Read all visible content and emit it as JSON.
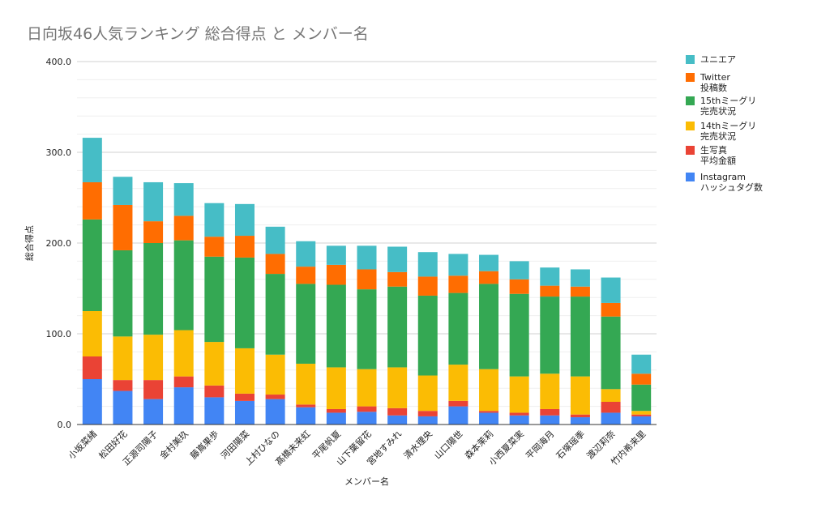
{
  "chart_data": {
    "type": "bar",
    "stacked": true,
    "title": "日向坂46人気ランキング 総合得点 と メンバー名",
    "xlabel": "メンバー名",
    "ylabel": "総合得点",
    "ylim": [
      0,
      400
    ],
    "yticks": [
      "0.0",
      "100.0",
      "200.0",
      "300.0",
      "400.0"
    ],
    "grid": true,
    "legend_position": "right",
    "categories": [
      "小坂菜緒",
      "松田好花",
      "正源司陽子",
      "金村美玖",
      "藤嶌果歩",
      "河田陽菜",
      "上村ひなの",
      "髙橋未来虹",
      "平尾帆夏",
      "山下葉留花",
      "宮地すみれ",
      "清水理央",
      "山口陽世",
      "森本茉莉",
      "小西夏菜実",
      "平岡海月",
      "石塚瑶季",
      "渡辺莉奈",
      "竹内希来里"
    ],
    "series": [
      {
        "name": "Instagram\nハッシュタグ数",
        "color": "#4285F4",
        "values": [
          50,
          37,
          28,
          41,
          30,
          26,
          28,
          19,
          13,
          14,
          10,
          9,
          20,
          13,
          10,
          10,
          8,
          13,
          9
        ]
      },
      {
        "name": "生写真\n平均金額",
        "color": "#EA4335",
        "values": [
          25,
          12,
          21,
          12,
          13,
          8,
          5,
          3,
          4,
          6,
          8,
          6,
          6,
          2,
          3,
          7,
          3,
          12,
          2
        ]
      },
      {
        "name": "14thミーグリ\n完売状況",
        "color": "#FBBC04",
        "values": [
          50,
          48,
          50,
          51,
          48,
          50,
          44,
          45,
          46,
          41,
          45,
          39,
          40,
          46,
          40,
          39,
          42,
          14,
          4
        ]
      },
      {
        "name": "15thミーグリ\n完売状況",
        "color": "#34A853",
        "values": [
          101,
          95,
          101,
          99,
          94,
          100,
          89,
          88,
          91,
          88,
          89,
          88,
          79,
          94,
          91,
          85,
          88,
          80,
          29
        ]
      },
      {
        "name": "Twitter\n投稿数",
        "color": "#FF6D01",
        "values": [
          41,
          50,
          24,
          27,
          22,
          24,
          22,
          19,
          22,
          22,
          16,
          21,
          19,
          14,
          16,
          12,
          11,
          15,
          12
        ]
      },
      {
        "name": "ユニエア",
        "color": "#46BDC6",
        "values": [
          49,
          31,
          43,
          36,
          37,
          35,
          30,
          28,
          21,
          26,
          28,
          27,
          24,
          18,
          20,
          20,
          19,
          28,
          21
        ]
      }
    ]
  }
}
